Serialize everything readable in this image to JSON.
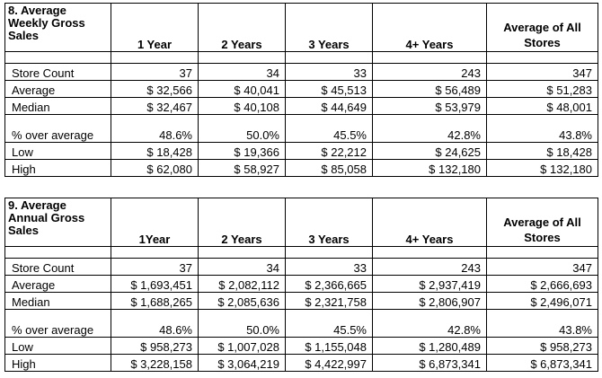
{
  "tables": [
    {
      "title": "8. Average Weekly Gross Sales",
      "columns": [
        "1 Year",
        "2 Years",
        "3 Years",
        "4+ Years",
        "Average of All Stores"
      ],
      "rows": [
        {
          "label": "Store Count",
          "values": [
            "37",
            "34",
            "33",
            "243",
            "347"
          ]
        },
        {
          "label": "Average",
          "values": [
            "$ 32,566",
            "$ 40,041",
            "$ 45,513",
            "$ 56,489",
            "$ 51,283"
          ]
        },
        {
          "label": "Median",
          "values": [
            "$ 32,467",
            "$ 40,108",
            "$ 44,649",
            "$ 53,979",
            "$ 48,001"
          ]
        },
        {
          "label": "% over average",
          "values": [
            "48.6%",
            "50.0%",
            "45.5%",
            "42.8%",
            "43.8%"
          ]
        },
        {
          "label": "Low",
          "values": [
            "$ 18,428",
            "$ 19,366",
            "$ 22,212",
            "$ 24,625",
            "$ 18,428"
          ]
        },
        {
          "label": "High",
          "values": [
            "$ 62,080",
            "$ 58,927",
            "$ 85,058",
            "$ 132,180",
            "$ 132,180"
          ]
        }
      ]
    },
    {
      "title": "9. Average Annual Gross Sales",
      "columns": [
        "1Year",
        "2 Years",
        "3 Years",
        "4+ Years",
        "Average of All Stores"
      ],
      "rows": [
        {
          "label": "Store Count",
          "values": [
            "37",
            "34",
            "33",
            "243",
            "347"
          ]
        },
        {
          "label": "Average",
          "values": [
            "$ 1,693,451",
            "$ 2,082,112",
            "$ 2,366,665",
            "$ 2,937,419",
            "$ 2,666,693"
          ]
        },
        {
          "label": "Median",
          "values": [
            "$ 1,688,265",
            "$ 2,085,636",
            "$ 2,321,758",
            "$ 2,806,907",
            "$ 2,496,071"
          ]
        },
        {
          "label": "% over average",
          "values": [
            "48.6%",
            "50.0%",
            "45.5%",
            "42.8%",
            "43.8%"
          ]
        },
        {
          "label": "Low",
          "values": [
            "$ 958,273",
            "$ 1,007,028",
            "$ 1,155,048",
            "$ 1,280,489",
            "$ 958,273"
          ]
        },
        {
          "label": "High",
          "values": [
            "$ 3,228,158",
            "$ 3,064,219",
            "$ 4,422,997",
            "$ 6,873,341",
            "$ 6,873,341"
          ]
        }
      ]
    }
  ]
}
